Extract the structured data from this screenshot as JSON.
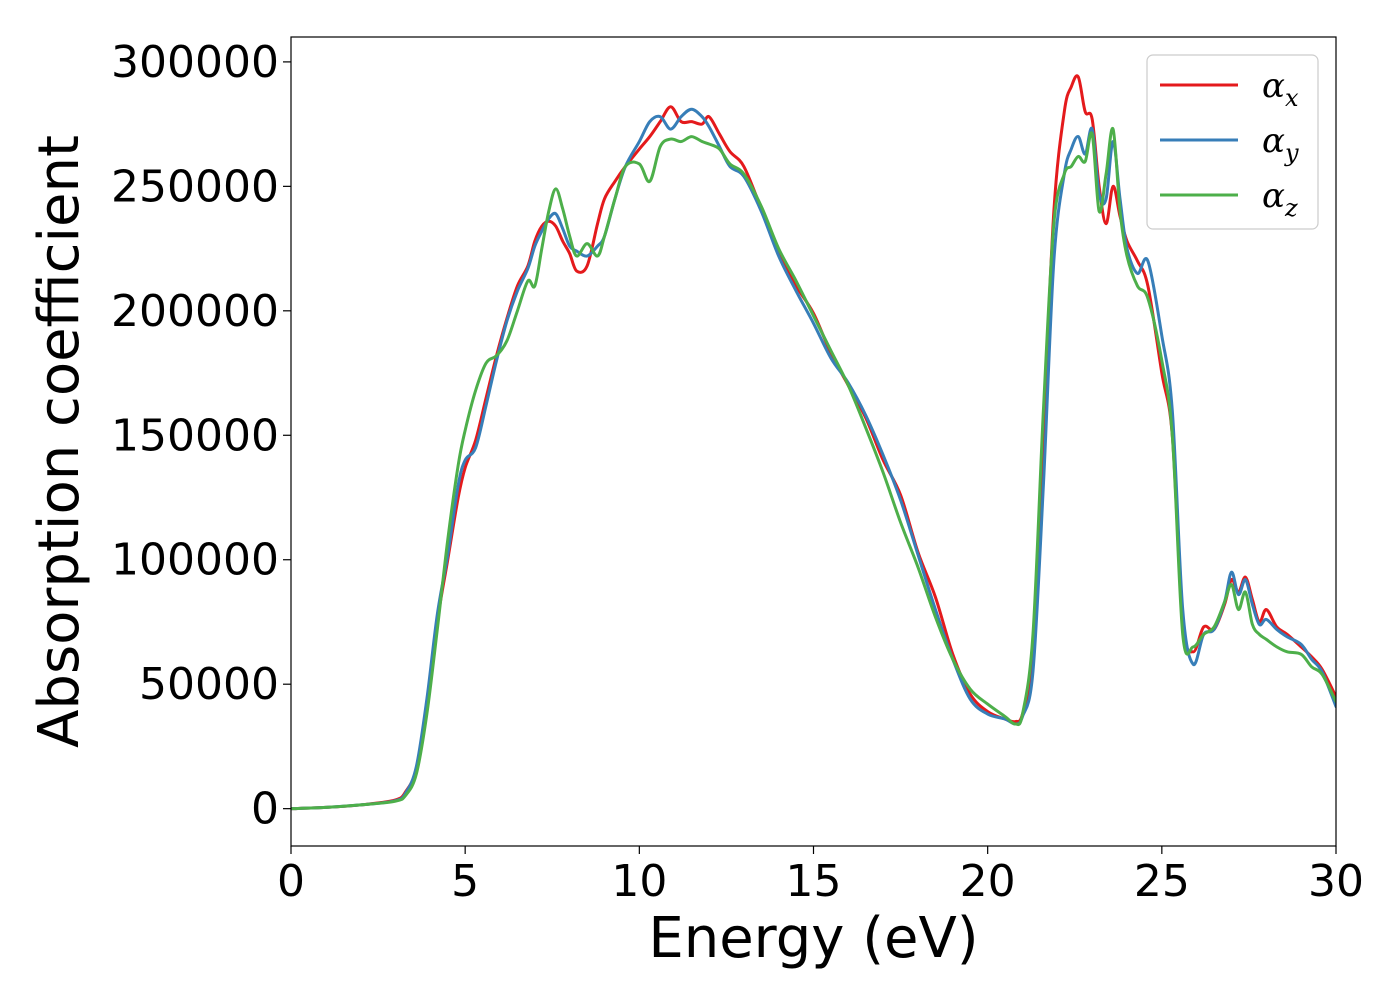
{
  "chart_data": {
    "type": "line",
    "title": "",
    "xlabel": "Energy (eV)",
    "ylabel": "Absorption coefficient",
    "xlim": [
      0,
      30
    ],
    "ylim": [
      -15000,
      310000
    ],
    "xticks": [
      0,
      5,
      10,
      15,
      20,
      25,
      30
    ],
    "yticks": [
      0,
      50000,
      100000,
      150000,
      200000,
      250000,
      300000
    ],
    "grid": false,
    "legend_position": "top-right",
    "series": [
      {
        "name": "α_x",
        "symbol": "α",
        "subscript": "x",
        "color": "#e41a1c",
        "x": [
          0,
          1,
          2,
          3,
          3.3,
          3.6,
          3.9,
          4.2,
          4.5,
          4.8,
          5.0,
          5.3,
          5.6,
          5.9,
          6.2,
          6.5,
          6.8,
          7.0,
          7.2,
          7.4,
          7.6,
          7.8,
          8.0,
          8.2,
          8.5,
          8.8,
          9.0,
          9.3,
          9.6,
          10.0,
          10.3,
          10.6,
          10.9,
          11.2,
          11.5,
          11.8,
          12.0,
          12.3,
          12.6,
          13.0,
          13.5,
          14.0,
          14.5,
          15.0,
          15.5,
          16.0,
          16.5,
          17.0,
          17.5,
          18.0,
          18.5,
          19.0,
          19.5,
          20.0,
          20.5,
          20.8,
          21.0,
          21.3,
          21.6,
          21.9,
          22.2,
          22.4,
          22.6,
          22.8,
          23.0,
          23.2,
          23.4,
          23.6,
          23.8,
          24.0,
          24.3,
          24.6,
          25.0,
          25.3,
          25.6,
          25.9,
          26.2,
          26.5,
          26.8,
          27.0,
          27.2,
          27.4,
          27.6,
          27.8,
          28.0,
          28.3,
          28.6,
          29.0,
          29.3,
          29.6,
          30.0
        ],
        "y": [
          0,
          500,
          1500,
          3500,
          7000,
          16000,
          40000,
          75000,
          100000,
          125000,
          137000,
          148000,
          165000,
          182000,
          197000,
          210000,
          218000,
          228000,
          234000,
          236000,
          234000,
          228000,
          223000,
          216000,
          218000,
          235000,
          245000,
          252000,
          258000,
          265000,
          270000,
          276000,
          282000,
          276000,
          276000,
          275000,
          278000,
          271000,
          264000,
          258000,
          241000,
          223000,
          210000,
          199000,
          183000,
          170000,
          157000,
          140000,
          126000,
          103000,
          85000,
          62000,
          46000,
          39000,
          36000,
          35000,
          38000,
          60000,
          150000,
          240000,
          280000,
          290000,
          294000,
          280000,
          277000,
          250000,
          235000,
          250000,
          238000,
          228000,
          220000,
          210000,
          175000,
          150000,
          75000,
          63000,
          73000,
          72000,
          82000,
          92000,
          87000,
          93000,
          84000,
          75000,
          80000,
          73000,
          70000,
          65000,
          61000,
          56000,
          45000
        ]
      },
      {
        "name": "α_y",
        "symbol": "α",
        "subscript": "y",
        "color": "#377eb8",
        "x": [
          0,
          1,
          2,
          3,
          3.3,
          3.6,
          3.9,
          4.2,
          4.5,
          4.8,
          5.0,
          5.3,
          5.6,
          5.9,
          6.2,
          6.5,
          6.8,
          7.0,
          7.2,
          7.4,
          7.6,
          7.8,
          8.0,
          8.2,
          8.5,
          8.8,
          9.0,
          9.3,
          9.6,
          10.0,
          10.3,
          10.6,
          10.9,
          11.2,
          11.5,
          11.8,
          12.0,
          12.3,
          12.6,
          13.0,
          13.5,
          14.0,
          14.5,
          15.0,
          15.5,
          16.0,
          16.5,
          17.0,
          17.5,
          18.0,
          18.5,
          19.0,
          19.5,
          20.0,
          20.5,
          20.8,
          21.0,
          21.3,
          21.6,
          21.9,
          22.2,
          22.4,
          22.6,
          22.8,
          23.0,
          23.2,
          23.4,
          23.6,
          23.8,
          24.0,
          24.3,
          24.6,
          25.0,
          25.3,
          25.6,
          25.9,
          26.2,
          26.5,
          26.8,
          27.0,
          27.2,
          27.4,
          27.6,
          27.8,
          28.0,
          28.3,
          28.6,
          29.0,
          29.3,
          29.6,
          30.0
        ],
        "y": [
          0,
          500,
          1500,
          3200,
          6500,
          17000,
          44000,
          78000,
          102000,
          130000,
          140000,
          145000,
          162000,
          180000,
          196000,
          208000,
          217000,
          226000,
          232000,
          237000,
          239000,
          233000,
          226000,
          224000,
          222000,
          226000,
          230000,
          245000,
          258000,
          268000,
          276000,
          278000,
          273000,
          278000,
          281000,
          278000,
          274000,
          266000,
          258000,
          254000,
          240000,
          222000,
          208000,
          195000,
          181000,
          171000,
          158000,
          142000,
          124000,
          102000,
          80000,
          60000,
          44000,
          38000,
          36000,
          34000,
          37000,
          55000,
          130000,
          220000,
          255000,
          265000,
          270000,
          263000,
          273000,
          247000,
          245000,
          268000,
          245000,
          225000,
          215000,
          220000,
          190000,
          160000,
          80000,
          58000,
          70000,
          72000,
          83000,
          95000,
          86000,
          92000,
          82000,
          74000,
          76000,
          72000,
          69000,
          66000,
          60000,
          55000,
          41000
        ]
      },
      {
        "name": "α_z",
        "symbol": "α",
        "subscript": "z",
        "color": "#4daf4a",
        "x": [
          0,
          1,
          2,
          3,
          3.3,
          3.6,
          3.9,
          4.2,
          4.5,
          4.8,
          5.0,
          5.3,
          5.6,
          5.9,
          6.2,
          6.5,
          6.8,
          7.0,
          7.2,
          7.4,
          7.6,
          7.8,
          8.0,
          8.2,
          8.5,
          8.8,
          9.0,
          9.3,
          9.6,
          10.0,
          10.3,
          10.6,
          10.9,
          11.2,
          11.5,
          11.8,
          12.0,
          12.3,
          12.6,
          13.0,
          13.5,
          14.0,
          14.5,
          15.0,
          15.5,
          16.0,
          16.5,
          17.0,
          17.5,
          18.0,
          18.5,
          19.0,
          19.5,
          20.0,
          20.5,
          20.8,
          21.0,
          21.3,
          21.6,
          21.9,
          22.2,
          22.4,
          22.6,
          22.8,
          23.0,
          23.2,
          23.4,
          23.6,
          23.8,
          24.0,
          24.3,
          24.6,
          25.0,
          25.3,
          25.6,
          25.9,
          26.2,
          26.5,
          26.8,
          27.0,
          27.2,
          27.4,
          27.6,
          27.8,
          28.0,
          28.3,
          28.6,
          29.0,
          29.3,
          29.6,
          30.0
        ],
        "y": [
          0,
          500,
          1500,
          3000,
          5500,
          14000,
          38000,
          72000,
          108000,
          138000,
          152000,
          168000,
          179000,
          182000,
          188000,
          200000,
          212000,
          210000,
          225000,
          240000,
          249000,
          241000,
          230000,
          222000,
          227000,
          222000,
          230000,
          245000,
          258000,
          259000,
          252000,
          266000,
          269000,
          268000,
          270000,
          268000,
          267000,
          265000,
          259000,
          255000,
          242000,
          225000,
          212000,
          198000,
          184000,
          170000,
          153000,
          135000,
          115000,
          97000,
          77000,
          60000,
          48000,
          42000,
          37000,
          34000,
          38000,
          70000,
          160000,
          235000,
          255000,
          258000,
          262000,
          260000,
          271000,
          240000,
          255000,
          273000,
          240000,
          222000,
          210000,
          205000,
          180000,
          150000,
          70000,
          65000,
          70000,
          73000,
          83000,
          90000,
          80000,
          87000,
          74000,
          70000,
          68000,
          65000,
          63000,
          62000,
          57000,
          54000,
          43000
        ]
      }
    ]
  }
}
